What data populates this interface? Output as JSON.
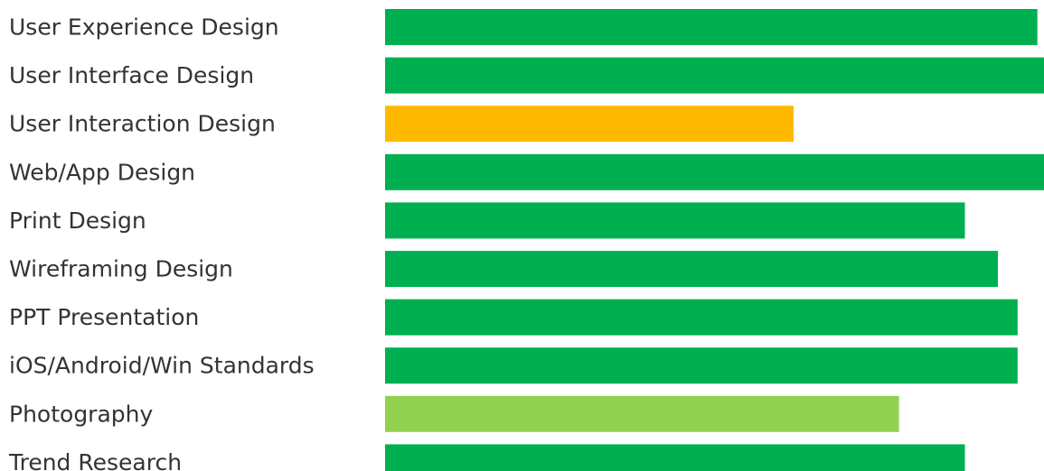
{
  "chart_data": {
    "type": "bar",
    "orientation": "horizontal",
    "categories": [
      "User Experience Design",
      "User Interface Design",
      "User Interaction Design",
      "Web/App Design",
      "Print Design",
      "Wireframing Design",
      "PPT Presentation",
      "iOS/Android/Win Standards",
      "Photography",
      "Trend Research"
    ],
    "values": [
      99,
      100,
      62,
      100,
      88,
      93,
      96,
      96,
      78,
      88
    ],
    "bar_colors": [
      "#00b050",
      "#00b050",
      "#ffb900",
      "#00b050",
      "#00b050",
      "#00b050",
      "#00b050",
      "#00b050",
      "#92d050",
      "#00b050"
    ],
    "xlim": [
      0,
      100
    ],
    "title": "",
    "xlabel": "",
    "ylabel": "",
    "grid": false,
    "legend": "none"
  }
}
